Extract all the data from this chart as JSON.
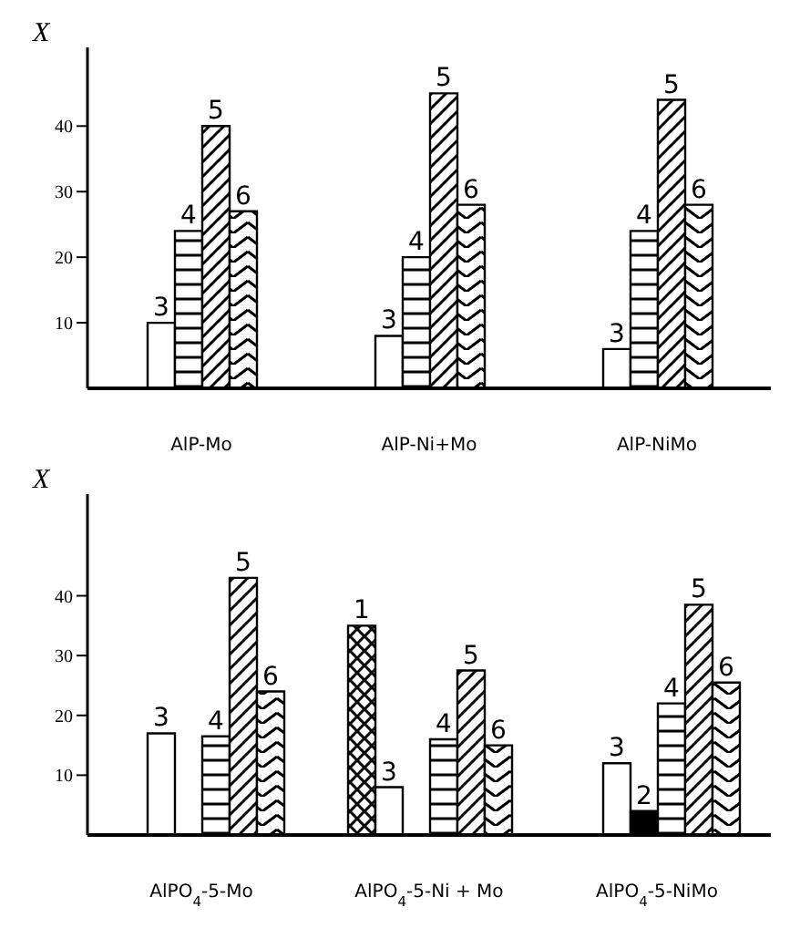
{
  "chart_data": [
    {
      "type": "bar",
      "ylabel": "X",
      "categories": [
        "AlP-Mo",
        "AlP-Ni+Mo",
        "AlP-NiMo"
      ],
      "series": [
        {
          "name": "3",
          "color": "#ffffff",
          "values": [
            10,
            8,
            6
          ]
        },
        {
          "name": "4",
          "color": "#000000",
          "values": [
            24,
            20,
            24
          ]
        },
        {
          "name": "5",
          "color": "#000000",
          "values": [
            40,
            45,
            44
          ]
        },
        {
          "name": "6",
          "color": "#000000",
          "values": [
            27,
            28,
            28
          ]
        }
      ],
      "ylim": [
        0,
        52
      ],
      "yticks": [
        10,
        20,
        30,
        40
      ]
    },
    {
      "type": "bar",
      "ylabel": "X",
      "categories": [
        "AlPO$_{4}$-5-Mo",
        "AlPO$_{4}$-5-Ni + Mo",
        "AlPO$_{4}$-5-NiMo"
      ],
      "series": [
        {
          "name": "1",
          "color": "#000000",
          "values": [
            null,
            35,
            null
          ]
        },
        {
          "name": "3",
          "color": "#ffffff",
          "values": [
            17,
            8,
            12
          ]
        },
        {
          "name": "2",
          "color": "#000000",
          "values": [
            null,
            null,
            4
          ]
        },
        {
          "name": "4",
          "color": "#000000",
          "values": [
            16.5,
            16,
            22
          ]
        },
        {
          "name": "5",
          "color": "#000000",
          "values": [
            43,
            27.5,
            38.5
          ]
        },
        {
          "name": "6",
          "color": "#000000",
          "values": [
            24,
            15,
            25.5
          ]
        }
      ],
      "ylim": [
        0,
        57
      ],
      "yticks": [
        10,
        20,
        30,
        40
      ]
    }
  ]
}
